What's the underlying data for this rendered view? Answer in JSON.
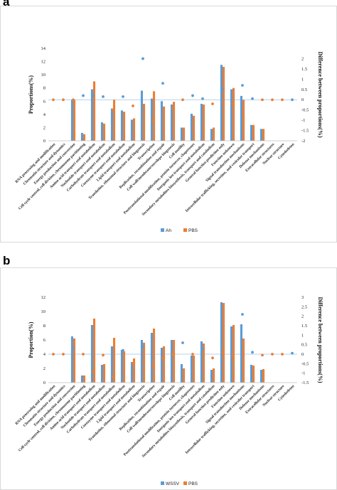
{
  "categories": [
    "RNA processing and modification",
    "Chromatin structure and dynamics",
    "Energy production and conversion",
    "Cell cycle control, cell division, chromosome partitioning",
    "Amino acid transport and metabolism",
    "Nucleotide transport and metabolism",
    "Carbohydrate transport and metabolism",
    "Coenzyme transport and metabolism",
    "Lipid transport and metabolism",
    "Translation, ribosomal structure and biogenesis",
    "Transcription",
    "Replication, recombination and repair",
    "Cell wall/membrane/envelope biogenesis",
    "Cell motility",
    "Posttranslational modification, protein turnover, chaperones",
    "Inorganic ion transport and metabolism",
    "Secondary metabolites biosynthesis, transport and catabolism",
    "General function prediction only",
    "Function unknown",
    "Signal transduction mechanisms",
    "Intracellular trafficking, secretion, and vesicular transport",
    "Defense mechanisms",
    "Extracellular structures",
    "Nuclear structure",
    "Cytoskeleton"
  ],
  "chart_data": [
    {
      "type": "bar",
      "panel": "a",
      "ylabel": "Proportions(%)",
      "y2label": "Difference between proportions(%)",
      "ylim": [
        0,
        14
      ],
      "yticks": [
        "0",
        "2",
        "4",
        "6",
        "8",
        "10",
        "12",
        "14"
      ],
      "y2lim": [
        -2,
        2.5
      ],
      "y2ticks": [
        "-2",
        "-1.5",
        "-1",
        "-0.5",
        "0",
        "0.5",
        "1",
        "1.5",
        "2"
      ],
      "grid": false,
      "legend_position": "bottom",
      "series": [
        {
          "name": "Ah",
          "color": "#5b9bd5",
          "values": [
            0,
            0,
            6.2,
            1.2,
            7.8,
            2.8,
            4.9,
            4.6,
            3.2,
            7.6,
            6.4,
            6.0,
            5.5,
            2.0,
            4.1,
            5.6,
            1.8,
            11.5,
            7.8,
            6.8,
            2.4,
            1.8,
            0,
            0,
            0
          ]
        },
        {
          "name": "PBS",
          "color": "#ed7d31",
          "values": [
            0,
            0,
            6.2,
            1.0,
            9.0,
            2.6,
            6.2,
            4.4,
            3.4,
            5.6,
            7.5,
            5.2,
            5.9,
            2.0,
            3.8,
            5.5,
            2.0,
            11.2,
            8.0,
            6.2,
            2.4,
            1.8,
            0,
            0,
            0
          ]
        }
      ],
      "difference": {
        "colors": [
          "#5b9bd5",
          "#ed7d31"
        ],
        "positive": [
          false,
          false,
          false,
          true,
          true,
          true,
          false,
          true,
          false,
          true,
          false,
          true,
          false,
          false,
          true,
          true,
          false,
          true,
          false,
          true,
          true,
          false,
          false,
          false,
          true
        ],
        "values": [
          0,
          0,
          0,
          0.2,
          0.2,
          0.15,
          -0.5,
          0.15,
          -0.3,
          2.0,
          -1.0,
          0.8,
          -0.4,
          0,
          0.2,
          0.05,
          -0.2,
          0.5,
          -0.2,
          0.7,
          0.05,
          0,
          0,
          0,
          0
        ]
      }
    },
    {
      "type": "bar",
      "panel": "b",
      "ylabel": "Proportion(%)",
      "y2label": "Difference between proportions(%)",
      "ylim": [
        0,
        12
      ],
      "yticks": [
        "0",
        "2",
        "4",
        "6",
        "8",
        "10",
        "12"
      ],
      "y2lim": [
        -1.5,
        3
      ],
      "y2ticks": [
        "-1.5",
        "-1",
        "-0.5",
        "0",
        "0.5",
        "1",
        "1.5",
        "2",
        "2.5",
        "3"
      ],
      "grid": false,
      "legend_position": "bottom",
      "series": [
        {
          "name": "WSSV",
          "color": "#5b9bd5",
          "values": [
            0,
            0,
            6.5,
            1.0,
            8.1,
            2.5,
            5.1,
            4.6,
            2.9,
            6.0,
            7.0,
            4.9,
            6.0,
            2.6,
            3.8,
            5.8,
            1.8,
            11.3,
            7.9,
            8.2,
            2.5,
            1.8,
            0,
            0,
            0
          ]
        },
        {
          "name": "PBS",
          "color": "#ed7d31",
          "values": [
            0,
            0,
            6.2,
            1.0,
            9.0,
            2.6,
            6.3,
            4.4,
            3.4,
            5.6,
            7.6,
            5.1,
            6.0,
            2.0,
            3.8,
            5.5,
            2.0,
            11.2,
            8.1,
            6.2,
            2.4,
            1.9,
            0,
            0,
            0
          ]
        }
      ],
      "difference": {
        "colors": [
          "#5b9bd5",
          "#ed7d31"
        ],
        "positive": [
          false,
          false,
          true,
          false,
          false,
          false,
          false,
          true,
          false,
          true,
          false,
          false,
          false,
          true,
          false,
          true,
          false,
          false,
          false,
          true,
          true,
          false,
          false,
          false,
          true
        ],
        "values": [
          0,
          0,
          0.3,
          0,
          -0.9,
          -0.05,
          -1.2,
          0.2,
          -0.5,
          0.4,
          -0.6,
          -0.2,
          0,
          0.6,
          0,
          0.3,
          -0.2,
          0.1,
          -0.1,
          2.1,
          0.1,
          -0.05,
          0,
          0,
          0.05
        ]
      }
    }
  ],
  "panels": [
    {
      "letter": "a"
    },
    {
      "letter": "b"
    }
  ]
}
